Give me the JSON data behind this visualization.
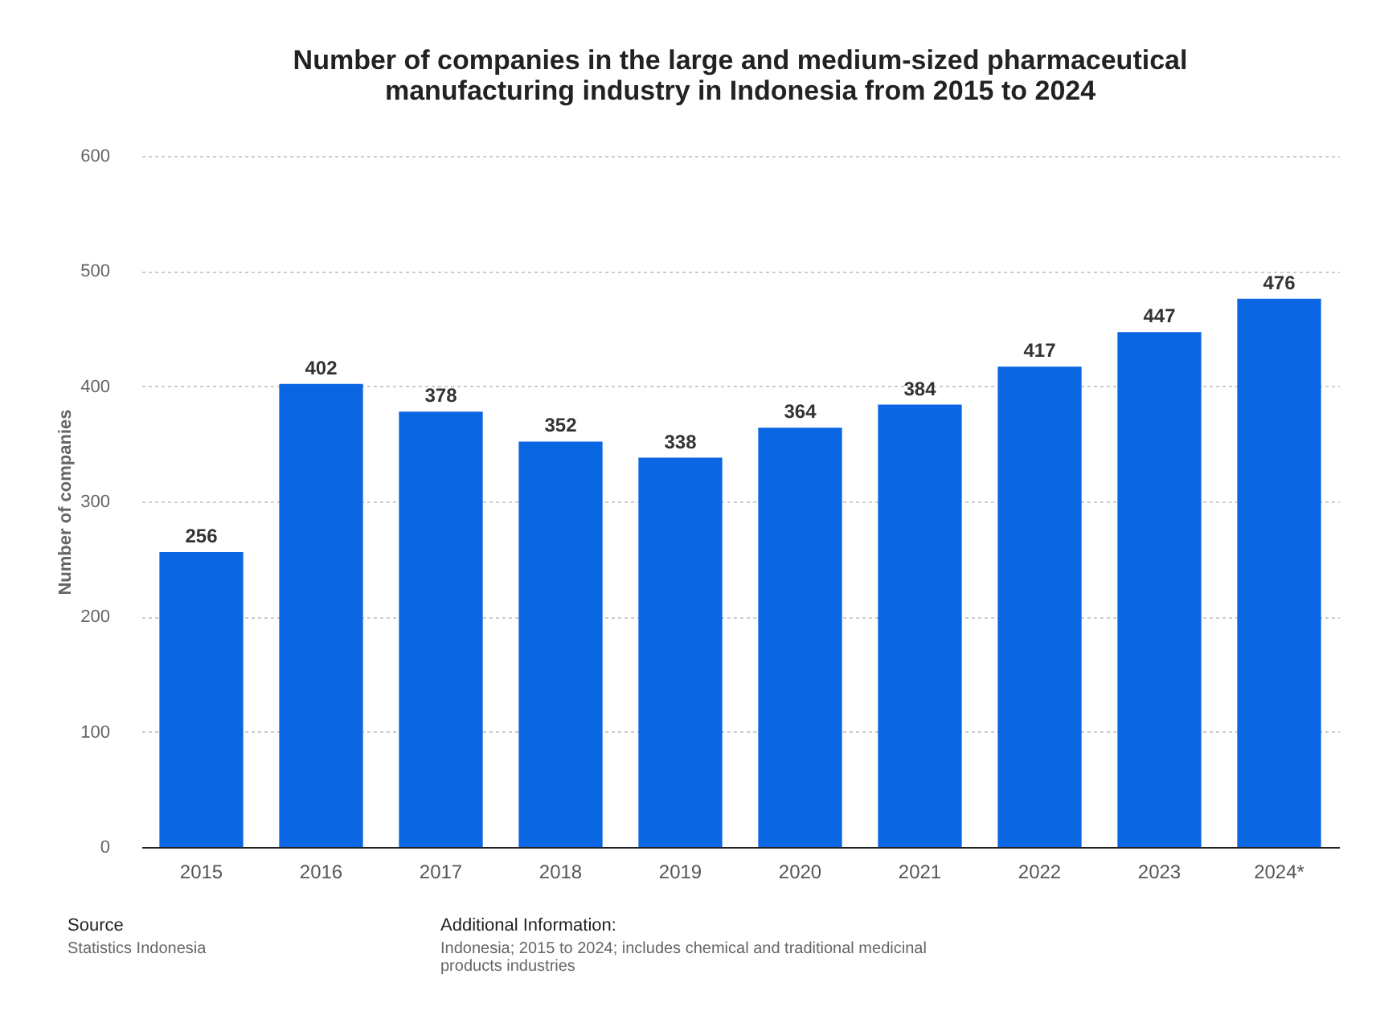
{
  "chart_data": {
    "type": "bar",
    "title": "Number of companies in the large and medium-sized pharmaceutical manufacturing industry in Indonesia from 2015 to 2024",
    "ylabel": "Number of companies",
    "categories": [
      "2015",
      "2016",
      "2017",
      "2018",
      "2019",
      "2020",
      "2021",
      "2022",
      "2023",
      "2024*"
    ],
    "values": [
      256,
      402,
      378,
      352,
      338,
      364,
      384,
      417,
      447,
      476
    ],
    "color": "#0b66e4",
    "ylim": [
      0,
      600
    ],
    "yticks": [
      0,
      100,
      200,
      300,
      400,
      500,
      600
    ],
    "grid": "y",
    "data_labels": true,
    "annotations": [
      "Source",
      "Statistics Indonesia",
      "Additional Information:",
      "Indonesia; 2015 to 2024; includes chemical and traditional medicinal products industries"
    ]
  }
}
